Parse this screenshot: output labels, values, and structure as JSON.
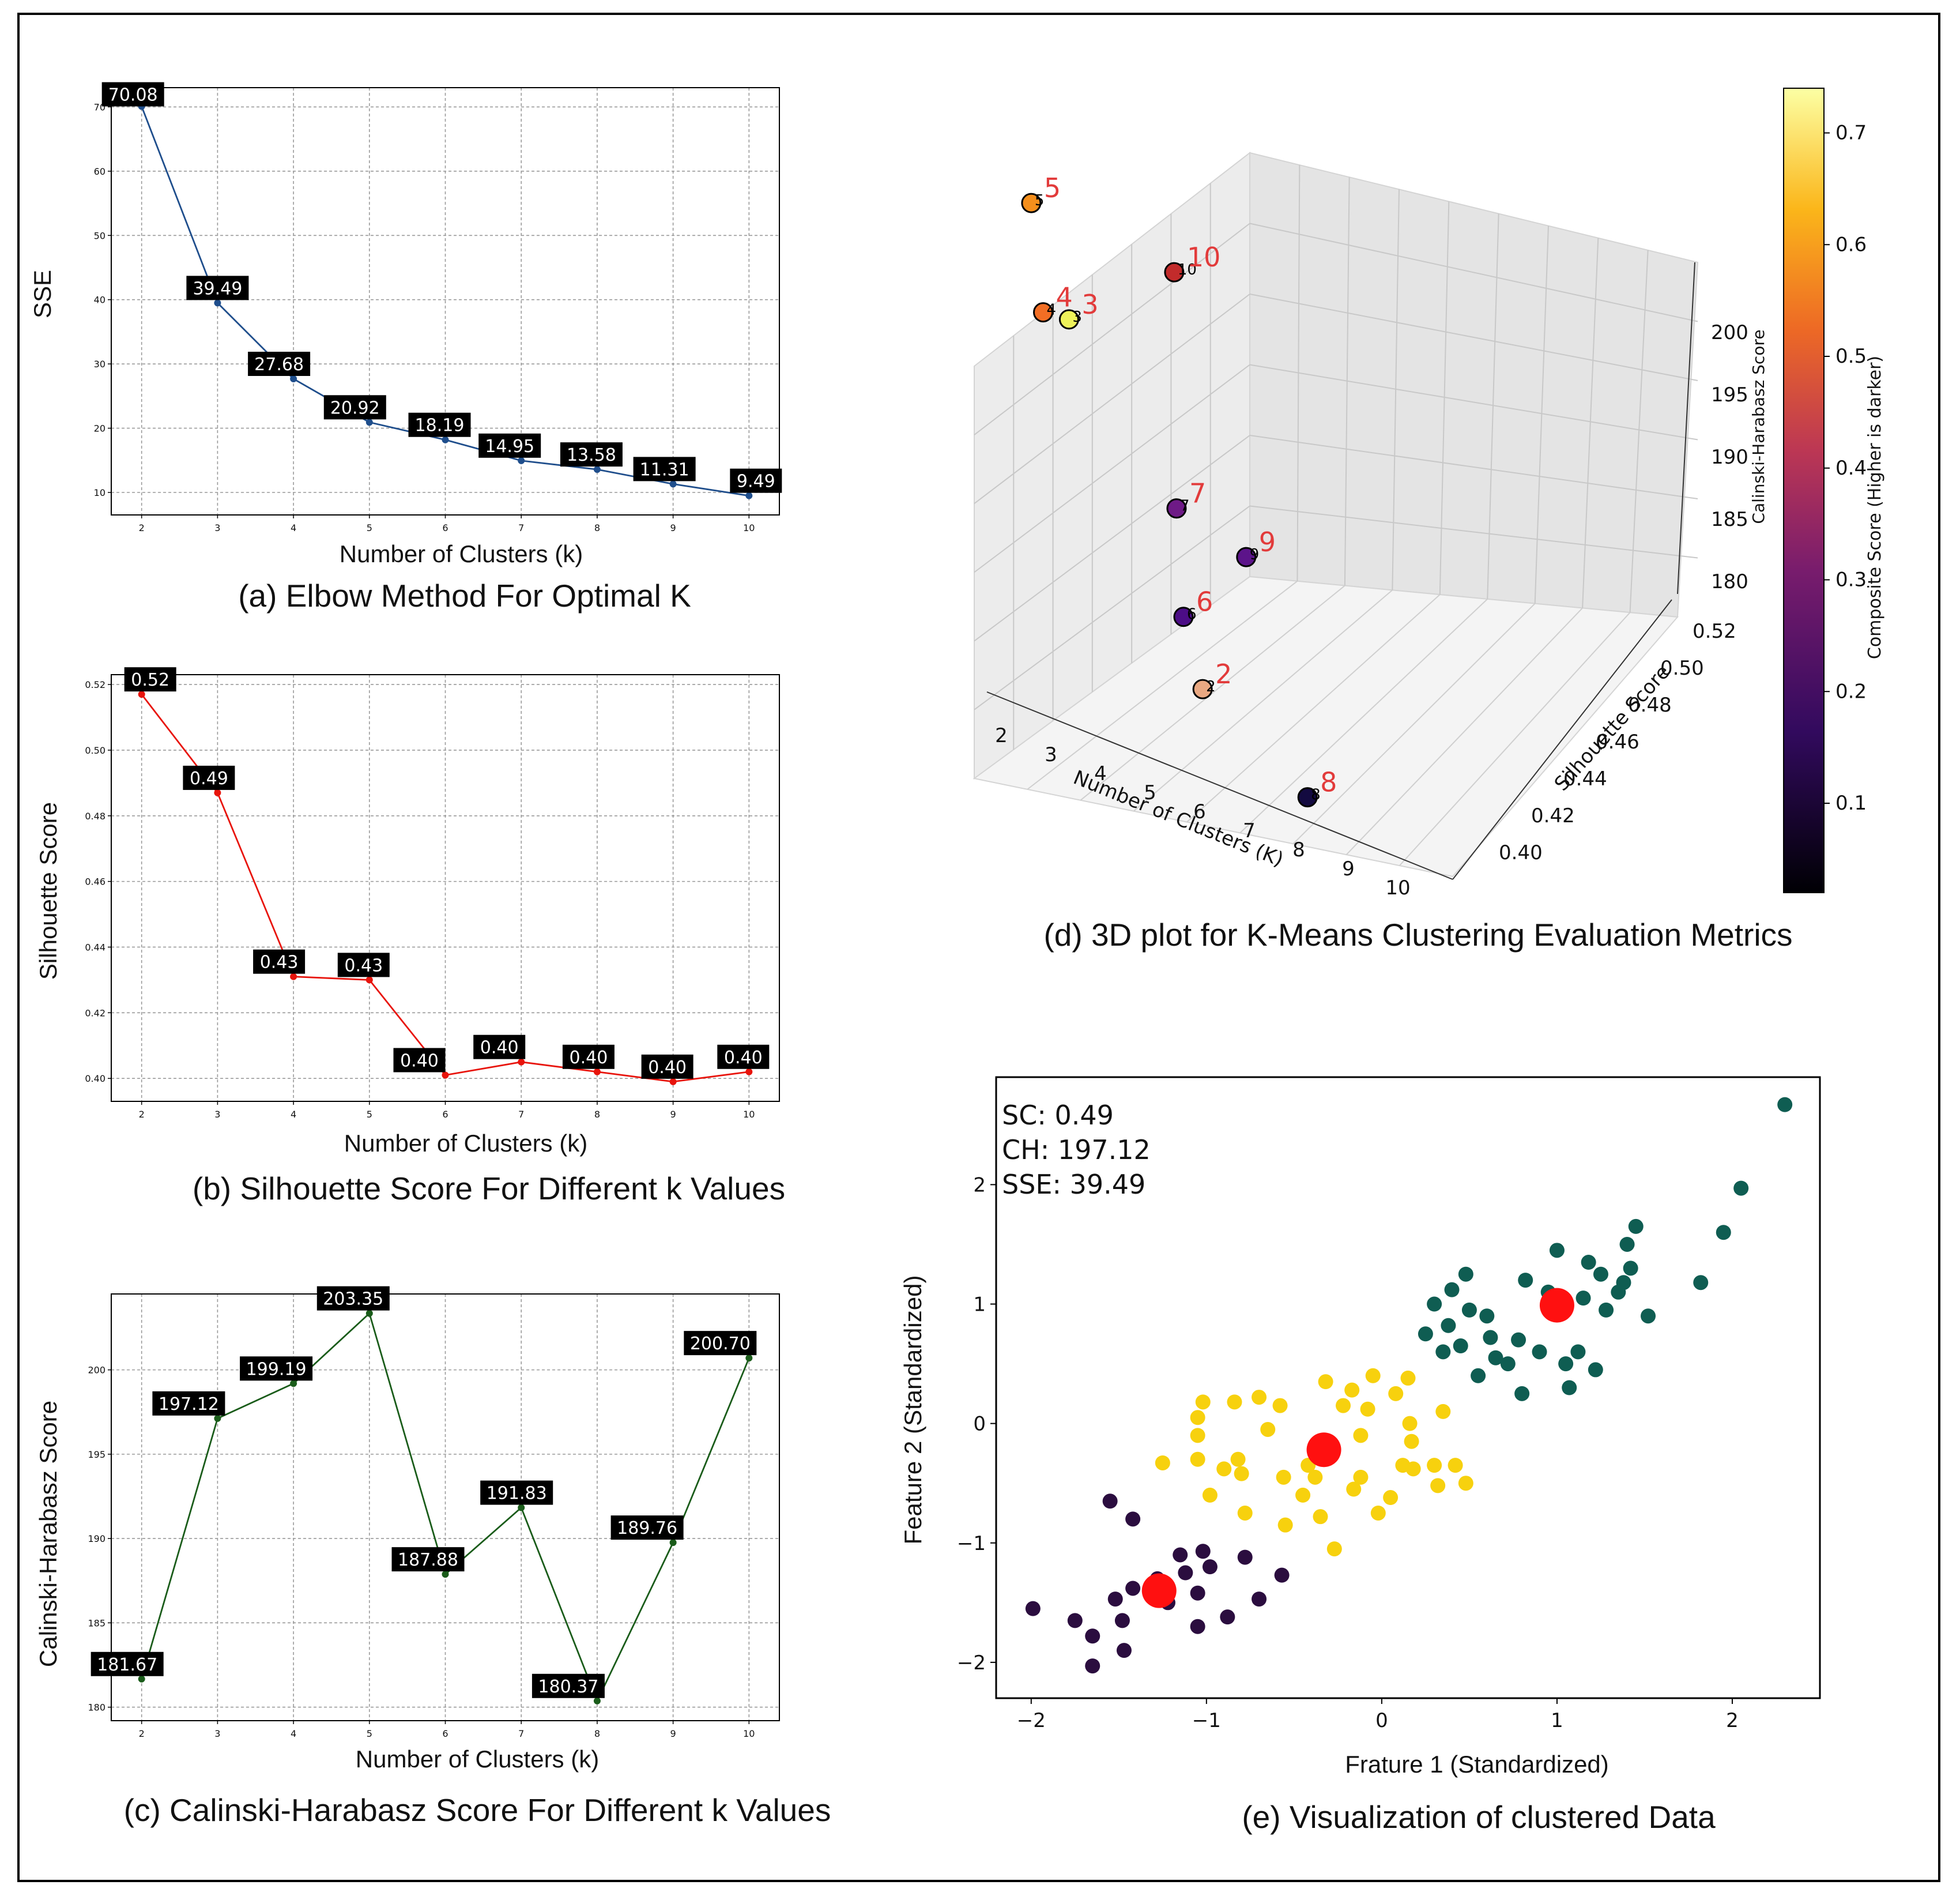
{
  "chart_data": [
    {
      "id": "elbow",
      "type": "line",
      "caption": "(a) Elbow Method For Optimal K",
      "xlabel": "Number of Clusters (k)",
      "ylabel": "SSE",
      "x": [
        2,
        3,
        4,
        5,
        6,
        7,
        8,
        9,
        10
      ],
      "values": [
        70.08,
        39.49,
        27.68,
        20.92,
        18.19,
        14.95,
        13.58,
        11.31,
        9.49
      ],
      "labels": [
        "70.08",
        "39.49",
        "27.68",
        "20.92",
        "18.19",
        "14.95",
        "13.58",
        "11.31",
        "9.49"
      ],
      "yticks": [
        10,
        20,
        30,
        40,
        50,
        60,
        70
      ],
      "ylim": [
        6.5,
        73
      ],
      "xlim": [
        1.6,
        10.4
      ],
      "color": "#1f4e8c",
      "grid": true
    },
    {
      "id": "silhouette",
      "type": "line",
      "caption": "(b) Silhouette Score For Different k Values",
      "xlabel": "Number of Clusters (k)",
      "ylabel": "Silhouette Score",
      "x": [
        2,
        3,
        4,
        5,
        6,
        7,
        8,
        9,
        10
      ],
      "values": [
        0.517,
        0.487,
        0.431,
        0.43,
        0.401,
        0.405,
        0.402,
        0.399,
        0.402
      ],
      "labels": [
        "0.52",
        "0.49",
        "0.43",
        "0.43",
        "0.40",
        "0.40",
        "0.40",
        "0.40",
        "0.40"
      ],
      "yticks": [
        0.4,
        0.42,
        0.44,
        0.46,
        0.48,
        0.5,
        0.52
      ],
      "ylim": [
        0.393,
        0.523
      ],
      "xlim": [
        1.6,
        10.4
      ],
      "color": "#e8140c",
      "grid": true
    },
    {
      "id": "calinski",
      "type": "line",
      "caption": "(c) Calinski-Harabasz Score For Different k Values",
      "xlabel": "Number of Clusters (k)",
      "ylabel": "Calinski-Harabasz Score",
      "x": [
        2,
        3,
        4,
        5,
        6,
        7,
        8,
        9,
        10
      ],
      "values": [
        181.67,
        197.12,
        199.19,
        203.35,
        187.88,
        191.83,
        180.37,
        189.76,
        200.7
      ],
      "labels": [
        "181.67",
        "197.12",
        "199.19",
        "203.35",
        "187.88",
        "191.83",
        "180.37",
        "189.76",
        "200.70"
      ],
      "yticks": [
        180,
        185,
        190,
        195,
        200
      ],
      "ylim": [
        179.2,
        204.5
      ],
      "xlim": [
        1.6,
        10.4
      ],
      "color": "#1a5c1a",
      "grid": true
    },
    {
      "id": "plot3d",
      "type": "scatter",
      "caption": "(d) 3D plot for K-Means Clustering Evaluation Metrics",
      "xlabel": "Number of Clusters (K)",
      "ylabel": "Silhouette Score",
      "zlabel": "Calinski-Harabasz Score",
      "colorbar_label": "Composite Score (Higher is darker)",
      "x_ticks": [
        "2",
        "3",
        "4",
        "5",
        "6",
        "7",
        "8",
        "9",
        "10"
      ],
      "y_ticks": [
        "0.40",
        "0.42",
        "0.44",
        "0.46",
        "0.48",
        "0.50",
        "0.52"
      ],
      "z_ticks": [
        "180",
        "185",
        "190",
        "195",
        "200"
      ],
      "colorbar_ticks": [
        "0.1",
        "0.2",
        "0.3",
        "0.4",
        "0.5",
        "0.6",
        "0.7"
      ],
      "points": [
        {
          "k": 2,
          "label": "2",
          "silhouette": 0.517,
          "calinski": 181.67,
          "composite": 0.56,
          "color": "#e9a882"
        },
        {
          "k": 3,
          "label": "3",
          "silhouette": 0.487,
          "calinski": 197.12,
          "composite": 0.74,
          "color": "#eef25a"
        },
        {
          "k": 4,
          "label": "4",
          "silhouette": 0.431,
          "calinski": 199.19,
          "composite": 0.61,
          "color": "#f26e24"
        },
        {
          "k": 5,
          "label": "5",
          "silhouette": 0.43,
          "calinski": 203.35,
          "composite": 0.66,
          "color": "#f58f1c"
        },
        {
          "k": 6,
          "label": "6",
          "silhouette": 0.401,
          "calinski": 187.88,
          "composite": 0.18,
          "color": "#4c0d86"
        },
        {
          "k": 7,
          "label": "7",
          "silhouette": 0.405,
          "calinski": 191.83,
          "composite": 0.25,
          "color": "#6e1a86"
        },
        {
          "k": 8,
          "label": "8",
          "silhouette": 0.402,
          "calinski": 180.37,
          "composite": 0.05,
          "color": "#130a40"
        },
        {
          "k": 9,
          "label": "9",
          "silhouette": 0.399,
          "calinski": 189.76,
          "composite": 0.22,
          "color": "#5c148a"
        },
        {
          "k": 10,
          "label": "10",
          "silhouette": 0.402,
          "calinski": 200.7,
          "composite": 0.45,
          "color": "#c22b2b"
        }
      ]
    },
    {
      "id": "clusters",
      "type": "scatter",
      "caption": "(e) Visualization of clustered Data",
      "xlabel": "Frature 1 (Standardized)",
      "ylabel": "Feature 2 (Standardized)",
      "xticks": [
        -2,
        -1,
        0,
        1,
        2
      ],
      "yticks": [
        -2,
        -1,
        0,
        1,
        2
      ],
      "xlim": [
        -2.2,
        2.5
      ],
      "ylim": [
        -2.3,
        2.9
      ],
      "annotations": [
        "SC: 0.49",
        "CH: 197.12",
        "SSE: 39.49"
      ],
      "series": [
        {
          "name": "cluster-0",
          "color": "#2b0d3f",
          "points": [
            [
              -1.99,
              -1.55
            ],
            [
              -1.75,
              -1.65
            ],
            [
              -1.65,
              -1.78
            ],
            [
              -1.65,
              -2.03
            ],
            [
              -1.55,
              -0.65
            ],
            [
              -1.52,
              -1.47
            ],
            [
              -1.48,
              -1.65
            ],
            [
              -1.47,
              -1.9
            ],
            [
              -1.42,
              -0.8
            ],
            [
              -1.42,
              -1.38
            ],
            [
              -1.32,
              -1.4
            ],
            [
              -1.28,
              -1.3
            ],
            [
              -1.22,
              -1.5
            ],
            [
              -1.15,
              -1.1
            ],
            [
              -1.12,
              -1.25
            ],
            [
              -1.05,
              -1.42
            ],
            [
              -1.05,
              -1.7
            ],
            [
              -1.02,
              -1.07
            ],
            [
              -0.98,
              -1.2
            ],
            [
              -0.88,
              -1.62
            ],
            [
              -0.78,
              -1.12
            ],
            [
              -0.7,
              -1.47
            ],
            [
              -0.57,
              -1.27
            ]
          ]
        },
        {
          "name": "cluster-1",
          "color": "#f7d10e",
          "points": [
            [
              -1.25,
              -0.33
            ],
            [
              -1.05,
              -0.1
            ],
            [
              -1.05,
              0.05
            ],
            [
              -1.02,
              0.18
            ],
            [
              -1.05,
              -0.3
            ],
            [
              -0.98,
              -0.6
            ],
            [
              -0.9,
              -0.38
            ],
            [
              -0.84,
              0.18
            ],
            [
              -0.82,
              -0.3
            ],
            [
              -0.8,
              -0.42
            ],
            [
              -0.78,
              -0.75
            ],
            [
              -0.7,
              0.22
            ],
            [
              -0.65,
              -0.05
            ],
            [
              -0.58,
              0.15
            ],
            [
              -0.56,
              -0.45
            ],
            [
              -0.55,
              -0.85
            ],
            [
              -0.45,
              -0.6
            ],
            [
              -0.42,
              -0.35
            ],
            [
              -0.38,
              -0.45
            ],
            [
              -0.35,
              -0.78
            ],
            [
              -0.32,
              0.35
            ],
            [
              -0.27,
              -1.05
            ],
            [
              -0.22,
              0.15
            ],
            [
              -0.17,
              0.28
            ],
            [
              -0.16,
              -0.55
            ],
            [
              -0.12,
              -0.45
            ],
            [
              -0.12,
              -0.1
            ],
            [
              -0.08,
              0.12
            ],
            [
              -0.05,
              0.4
            ],
            [
              -0.02,
              -0.75
            ],
            [
              0.05,
              -0.62
            ],
            [
              0.08,
              0.25
            ],
            [
              0.12,
              -0.35
            ],
            [
              0.15,
              0.38
            ],
            [
              0.16,
              0.0
            ],
            [
              0.17,
              -0.15
            ],
            [
              0.18,
              -0.38
            ],
            [
              0.3,
              -0.35
            ],
            [
              0.32,
              -0.52
            ],
            [
              0.35,
              0.1
            ],
            [
              0.42,
              -0.35
            ],
            [
              0.48,
              -0.5
            ]
          ]
        },
        {
          "name": "cluster-2",
          "color": "#0f5d52",
          "points": [
            [
              0.25,
              0.75
            ],
            [
              0.3,
              1.0
            ],
            [
              0.35,
              0.6
            ],
            [
              0.38,
              0.82
            ],
            [
              0.4,
              1.12
            ],
            [
              0.45,
              0.65
            ],
            [
              0.48,
              1.25
            ],
            [
              0.5,
              0.95
            ],
            [
              0.55,
              0.4
            ],
            [
              0.6,
              0.9
            ],
            [
              0.62,
              0.72
            ],
            [
              0.65,
              0.55
            ],
            [
              0.72,
              0.5
            ],
            [
              0.78,
              0.7
            ],
            [
              0.8,
              0.25
            ],
            [
              0.82,
              1.2
            ],
            [
              0.9,
              0.6
            ],
            [
              0.95,
              1.1
            ],
            [
              1.0,
              1.45
            ],
            [
              1.05,
              0.5
            ],
            [
              1.07,
              0.3
            ],
            [
              1.12,
              0.6
            ],
            [
              1.15,
              1.05
            ],
            [
              1.18,
              1.35
            ],
            [
              1.22,
              0.45
            ],
            [
              1.25,
              1.25
            ],
            [
              1.28,
              0.95
            ],
            [
              1.35,
              1.1
            ],
            [
              1.38,
              1.18
            ],
            [
              1.4,
              1.5
            ],
            [
              1.42,
              1.3
            ],
            [
              1.45,
              1.65
            ],
            [
              1.52,
              0.9
            ],
            [
              1.82,
              1.18
            ],
            [
              1.95,
              1.6
            ],
            [
              2.05,
              1.97
            ],
            [
              2.3,
              2.67
            ]
          ]
        },
        {
          "name": "centroids",
          "color": "#ff1010",
          "points": [
            [
              -1.27,
              -1.4
            ],
            [
              -0.33,
              -0.22
            ],
            [
              1.0,
              0.99
            ]
          ]
        }
      ]
    }
  ]
}
